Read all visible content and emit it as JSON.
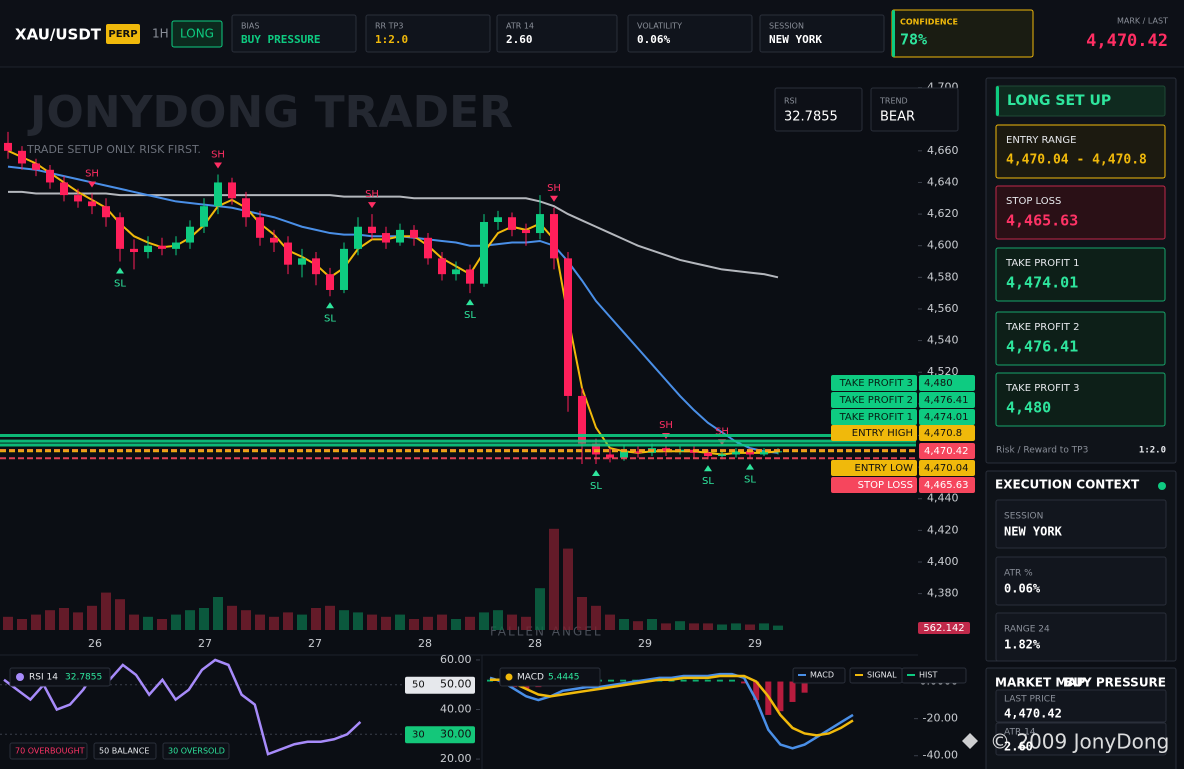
{
  "header": {
    "symbol": "XAU/USDT",
    "badge": "PERP",
    "timeframe": "1H",
    "side": "LONG",
    "cards": [
      {
        "label": "BIAS",
        "value": "BUY PRESSURE"
      },
      {
        "label": "RR TP3",
        "value": "1:2.0"
      },
      {
        "label": "ATR 14",
        "value": "2.60"
      },
      {
        "label": "VOLATILITY",
        "value": "0.06%"
      },
      {
        "label": "SESSION",
        "value": "NEW YORK"
      }
    ],
    "confidence": {
      "label": "CONFIDENCE",
      "value": "78%"
    },
    "mark": {
      "label": "MARK / LAST",
      "value": "4,470.42"
    }
  },
  "side_panel": {
    "title": "LONG SET UP",
    "setup": [
      {
        "label": "ENTRY RANGE",
        "value": "4,470.04 - 4,470.8"
      },
      {
        "label": "STOP LOSS",
        "value": "4,465.63"
      },
      {
        "label": "TAKE PROFIT 1",
        "value": "4,474.01"
      },
      {
        "label": "TAKE PROFIT 2",
        "value": "4,476.41"
      },
      {
        "label": "TAKE PROFIT 3",
        "value": "4,480"
      }
    ],
    "rr_label": "Risk / Reward to TP3",
    "rr_value": "1:2.0"
  },
  "execution": {
    "title": "EXECUTION CONTEXT",
    "items": [
      {
        "label": "SESSION",
        "value": "NEW YORK"
      },
      {
        "label": "ATR %",
        "value": "0.06%"
      },
      {
        "label": "RANGE 24",
        "value": "1.82%"
      }
    ]
  },
  "market_map": {
    "title": "MARKET MAP",
    "bias": "BUY PRESSURE",
    "items": [
      {
        "label": "LAST PRICE",
        "value": "4,470.42"
      },
      {
        "label": "ATR 14",
        "value": "2.60"
      }
    ]
  },
  "watermark": "© 2009 JonyDong",
  "chart_data": [
    {
      "type": "candlestick",
      "title": "JONYDONG TRADER",
      "subtitle": "TRADE SETUP ONLY. RISK FIRST.",
      "footer": "FALLEN ANGEL",
      "info_boxes": [
        {
          "label": "RSI",
          "value": "32.7855"
        },
        {
          "label": "TREND",
          "value": "BEAR"
        }
      ],
      "ylim": [
        4357,
        4713
      ],
      "yticks": [
        {
          "value": 4380,
          "label": "4,380"
        },
        {
          "value": 4400,
          "label": "4,400"
        },
        {
          "value": 4420,
          "label": "4,420"
        },
        {
          "value": 4440,
          "label": "4,440"
        },
        {
          "value": 4460,
          "label": "4,460"
        },
        {
          "value": 4480,
          "label": "4,480"
        },
        {
          "value": 4500,
          "label": "4,500"
        },
        {
          "value": 4520,
          "label": "4,520"
        },
        {
          "value": 4540,
          "label": "4,540"
        },
        {
          "value": 4560,
          "label": "4,560"
        },
        {
          "value": 4580,
          "label": "4,580"
        },
        {
          "value": 4600,
          "label": "4,600"
        },
        {
          "value": 4620,
          "label": "4,620"
        },
        {
          "value": 4640,
          "label": "4,640"
        },
        {
          "value": 4660,
          "label": "4,660"
        },
        {
          "value": 4680,
          "label": "4,680"
        },
        {
          "value": 4700,
          "label": "4,700"
        }
      ],
      "x_tick_labels": [
        "26",
        "27",
        "27",
        "28",
        "28",
        "29",
        "29"
      ],
      "candles": [
        [
          4665,
          4672,
          4655,
          4660
        ],
        [
          4660,
          4663,
          4648,
          4652
        ],
        [
          4652,
          4655,
          4644,
          4648
        ],
        [
          4648,
          4651,
          4636,
          4640
        ],
        [
          4640,
          4644,
          4628,
          4632
        ],
        [
          4632,
          4636,
          4624,
          4628
        ],
        [
          4628,
          4633,
          4620,
          4625
        ],
        [
          4625,
          4630,
          4612,
          4618
        ],
        [
          4618,
          4621,
          4590,
          4598
        ],
        [
          4598,
          4604,
          4585,
          4596
        ],
        [
          4596,
          4606,
          4592,
          4600
        ],
        [
          4600,
          4605,
          4594,
          4598
        ],
        [
          4598,
          4606,
          4594,
          4602
        ],
        [
          4602,
          4616,
          4598,
          4612
        ],
        [
          4612,
          4630,
          4608,
          4625
        ],
        [
          4625,
          4645,
          4620,
          4640
        ],
        [
          4640,
          4643,
          4626,
          4630
        ],
        [
          4630,
          4634,
          4612,
          4618
        ],
        [
          4618,
          4622,
          4600,
          4605
        ],
        [
          4605,
          4610,
          4596,
          4602
        ],
        [
          4602,
          4606,
          4582,
          4588
        ],
        [
          4588,
          4598,
          4580,
          4592
        ],
        [
          4592,
          4596,
          4575,
          4582
        ],
        [
          4582,
          4586,
          4568,
          4572
        ],
        [
          4572,
          4602,
          4570,
          4598
        ],
        [
          4598,
          4618,
          4594,
          4612
        ],
        [
          4612,
          4620,
          4604,
          4608
        ],
        [
          4608,
          4612,
          4598,
          4602
        ],
        [
          4602,
          4614,
          4600,
          4610
        ],
        [
          4610,
          4613,
          4600,
          4605
        ],
        [
          4605,
          4608,
          4588,
          4592
        ],
        [
          4592,
          4596,
          4578,
          4582
        ],
        [
          4582,
          4590,
          4578,
          4585
        ],
        [
          4585,
          4588,
          4570,
          4576
        ],
        [
          4576,
          4620,
          4574,
          4615
        ],
        [
          4615,
          4622,
          4610,
          4618
        ],
        [
          4618,
          4621,
          4606,
          4610
        ],
        [
          4610,
          4614,
          4600,
          4608
        ],
        [
          4608,
          4632,
          4604,
          4620
        ],
        [
          4620,
          4624,
          4585,
          4592
        ],
        [
          4592,
          4596,
          4495,
          4505
        ],
        [
          4505,
          4510,
          4462,
          4475
        ],
        [
          4475,
          4478,
          4462,
          4468
        ],
        [
          4468,
          4472,
          4463,
          4466
        ],
        [
          4466,
          4474,
          4464,
          4470
        ],
        [
          4470,
          4473,
          4466,
          4469
        ],
        [
          4469,
          4475,
          4467,
          4472
        ],
        [
          4472,
          4474,
          4467,
          4470
        ],
        [
          4470,
          4473,
          4468,
          4471
        ],
        [
          4471,
          4473,
          4466,
          4469
        ],
        [
          4469,
          4471,
          4465,
          4467
        ],
        [
          4467,
          4470,
          4465,
          4468
        ],
        [
          4468,
          4472,
          4466,
          4470
        ],
        [
          4470,
          4472,
          4466,
          4468
        ],
        [
          4468,
          4472,
          4467,
          4470
        ],
        [
          4470,
          4472,
          4468,
          4470
        ]
      ],
      "volumes": [
        12,
        10,
        14,
        18,
        20,
        16,
        22,
        34,
        28,
        14,
        12,
        10,
        14,
        18,
        20,
        30,
        22,
        18,
        14,
        12,
        16,
        14,
        20,
        22,
        18,
        16,
        14,
        12,
        14,
        10,
        12,
        14,
        10,
        12,
        16,
        18,
        14,
        12,
        38,
        92,
        74,
        30,
        22,
        14,
        10,
        8,
        10,
        6,
        8,
        6,
        6,
        5,
        6,
        5,
        6,
        4
      ],
      "volume_ylim": [
        0,
        100
      ],
      "volume_label": "562.142",
      "series": [
        {
          "color": "#b4b7bd",
          "values": [
            4634,
            4634,
            4633,
            4633,
            4633,
            4633,
            4633,
            4633,
            4632,
            4632,
            4632,
            4632,
            4632,
            4632,
            4632,
            4632,
            4632,
            4632,
            4632,
            4632,
            4632,
            4632,
            4632,
            4632,
            4631,
            4631,
            4631,
            4631,
            4631,
            4630,
            4630,
            4630,
            4630,
            4630,
            4630,
            4630,
            4630,
            4630,
            4628,
            4625,
            4620,
            4616,
            4612,
            4608,
            4604,
            4600,
            4597,
            4594,
            4591,
            4589,
            4587,
            4585,
            4584,
            4583,
            4582,
            4580
          ]
        },
        {
          "color": "#4a8fe7",
          "values": [
            4650,
            4649,
            4648,
            4646,
            4644,
            4642,
            4640,
            4638,
            4636,
            4634,
            4632,
            4630,
            4628,
            4627,
            4626,
            4625,
            4624,
            4622,
            4620,
            4618,
            4615,
            4612,
            4610,
            4608,
            4607,
            4607,
            4606,
            4606,
            4606,
            4605,
            4604,
            4603,
            4602,
            4600,
            4600,
            4601,
            4602,
            4602,
            4603,
            4600,
            4590,
            4578,
            4565,
            4555,
            4545,
            4535,
            4525,
            4515,
            4505,
            4496,
            4488,
            4482,
            4476,
            4472,
            4470,
            4469
          ]
        },
        {
          "color": "#f0b90b",
          "values": [
            4660,
            4656,
            4652,
            4646,
            4640,
            4634,
            4629,
            4624,
            4614,
            4606,
            4602,
            4599,
            4600,
            4605,
            4613,
            4625,
            4629,
            4624,
            4614,
            4607,
            4597,
            4593,
            4588,
            4580,
            4586,
            4598,
            4604,
            4604,
            4606,
            4606,
            4600,
            4592,
            4587,
            4582,
            4596,
            4608,
            4612,
            4610,
            4614,
            4604,
            4555,
            4510,
            4485,
            4472,
            4470,
            4469,
            4470,
            4470,
            4470,
            4470,
            4469,
            4468,
            4469,
            4469,
            4469,
            4470
          ]
        }
      ],
      "swing_marks": [
        null,
        null,
        null,
        null,
        null,
        null,
        "SH",
        null,
        "SL",
        null,
        null,
        null,
        null,
        null,
        null,
        "SH",
        null,
        null,
        null,
        null,
        null,
        null,
        null,
        "SL",
        null,
        null,
        "SH",
        null,
        null,
        null,
        null,
        null,
        null,
        "SL",
        null,
        null,
        null,
        null,
        null,
        "SH",
        null,
        null,
        "SL",
        null,
        null,
        null,
        null,
        "SH",
        null,
        null,
        "SL",
        "SH",
        null,
        "SL",
        null,
        null
      ],
      "levels": [
        {
          "label": "TAKE PROFIT 3",
          "value": 4480,
          "value_label": "4,480",
          "color": "#0ecb81"
        },
        {
          "label": "TAKE PROFIT 2",
          "value": 4476.41,
          "value_label": "4,476.41",
          "color": "#0ecb81"
        },
        {
          "label": "TAKE PROFIT 1",
          "value": 4474.01,
          "value_label": "4,474.01",
          "color": "#0ecb81"
        },
        {
          "label": "ENTRY HIGH",
          "value": 4470.8,
          "value_label": "4,470.8",
          "color": "#f0b90b"
        },
        {
          "value": 4470.42,
          "value_label": "4,470.42",
          "color": "#f6465d"
        },
        {
          "label": "ENTRY LOW",
          "value": 4470.04,
          "value_label": "4,470.04",
          "color": "#f0b90b"
        },
        {
          "label": "STOP LOSS",
          "value": 4465.63,
          "value_label": "4,465.63",
          "color": "#f6465d"
        }
      ]
    },
    {
      "type": "line",
      "title": "RSI 14",
      "value_label": "32.7855",
      "color": "#a78bfa",
      "ylim": [
        16,
        62
      ],
      "yticks": [
        {
          "value": 60,
          "label": "60.00"
        },
        {
          "value": 40,
          "label": "40.00"
        },
        {
          "value": 20,
          "label": "20.00"
        }
      ],
      "levels": [
        {
          "value": 50,
          "text": "50",
          "label": "50.00"
        },
        {
          "value": 30,
          "text": "30",
          "label": "30.00"
        }
      ],
      "notes": [
        "70 OVERBOUGHT",
        "50 BALANCE",
        "30 OVERSOLD"
      ],
      "values": [
        52,
        48,
        44,
        50,
        40,
        42,
        48,
        56,
        52,
        58,
        54,
        46,
        52,
        44,
        48,
        56,
        60,
        58,
        46,
        42,
        22,
        24,
        26,
        27,
        27,
        28,
        30,
        35
      ]
    },
    {
      "type": "macd",
      "title": "MACD",
      "value_label": "5.4445",
      "ylim": [
        -45,
        10
      ],
      "yticks": [
        {
          "value": 0,
          "label": "0.0000"
        },
        {
          "value": -20,
          "label": "-20.00"
        },
        {
          "value": -40,
          "label": "-40.00"
        }
      ],
      "series": [
        {
          "name": "MACD",
          "color": "#4a8fe7",
          "values": [
            2,
            0,
            -4,
            -8,
            -10,
            -8,
            -5,
            -4,
            -3,
            -3,
            -2,
            -1,
            0,
            1,
            2,
            2,
            3,
            3,
            3,
            4,
            4,
            2,
            -10,
            -26,
            -34,
            -36,
            -34,
            -30,
            -26,
            -22,
            -18
          ]
        },
        {
          "name": "SIGNAL",
          "color": "#f0b90b",
          "values": [
            1,
            1,
            -1,
            -4,
            -7,
            -8,
            -7,
            -6,
            -5,
            -4,
            -3,
            -2,
            -1,
            0,
            1,
            1,
            2,
            2,
            2,
            3,
            3,
            3,
            0,
            -8,
            -18,
            -25,
            -28,
            -29,
            -28,
            -25,
            -21
          ]
        }
      ],
      "histogram": {
        "name": "HIST",
        "color": "#0ecb81",
        "values": [
          1,
          -1,
          -3,
          -4,
          -3,
          0,
          2,
          2,
          2,
          1,
          1,
          1,
          1,
          1,
          1,
          1,
          1,
          1,
          1,
          1,
          1,
          -1,
          -10,
          -18,
          -16,
          -11,
          -6,
          -1,
          2,
          3,
          3
        ]
      }
    }
  ]
}
